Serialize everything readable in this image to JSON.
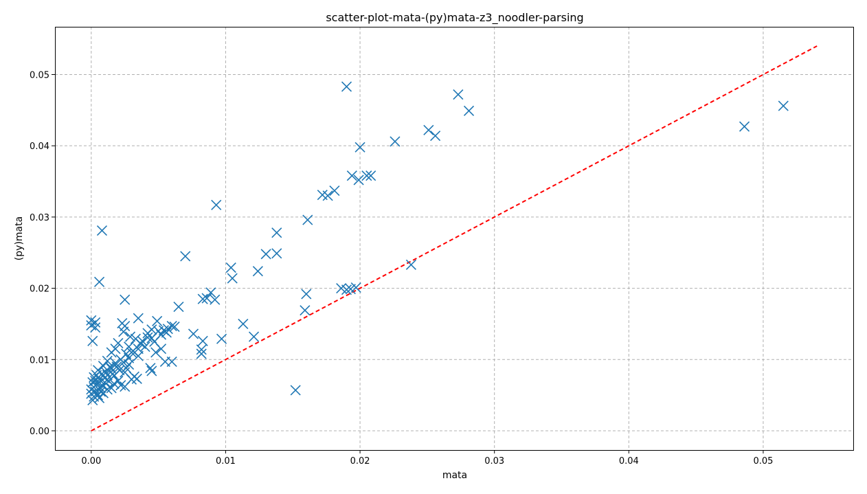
{
  "chart_data": {
    "type": "scatter",
    "title": "scatter-plot-mata-(py)mata-z3_noodler-parsing",
    "xlabel": "mata",
    "ylabel": "(py)mata",
    "xlim": [
      -0.0027,
      0.0567
    ],
    "ylim": [
      -0.0027,
      0.0567
    ],
    "xticks": [
      0.0,
      0.01,
      0.02,
      0.03,
      0.04,
      0.05
    ],
    "xtick_labels": [
      "0.00",
      "0.01",
      "0.02",
      "0.03",
      "0.04",
      "0.05"
    ],
    "yticks": [
      0.0,
      0.01,
      0.02,
      0.03,
      0.04,
      0.05
    ],
    "ytick_labels": [
      "0.00",
      "0.01",
      "0.02",
      "0.03",
      "0.04",
      "0.05"
    ],
    "grid": true,
    "marker": "x",
    "series": [
      {
        "color": "#1f77b4",
        "points": [
          [
            0.019,
            0.0483
          ],
          [
            0.0273,
            0.0472
          ],
          [
            0.0281,
            0.0449
          ],
          [
            0.0515,
            0.0456
          ],
          [
            0.0486,
            0.0427
          ],
          [
            0.0251,
            0.0422
          ],
          [
            0.0256,
            0.0414
          ],
          [
            0.0226,
            0.0406
          ],
          [
            0.02,
            0.0398
          ],
          [
            0.0194,
            0.0358
          ],
          [
            0.0199,
            0.0352
          ],
          [
            0.0205,
            0.0358
          ],
          [
            0.0208,
            0.0358
          ],
          [
            0.0181,
            0.0337
          ],
          [
            0.0176,
            0.033
          ],
          [
            0.0172,
            0.0331
          ],
          [
            0.0093,
            0.0317
          ],
          [
            0.0161,
            0.0296
          ],
          [
            0.0008,
            0.0281
          ],
          [
            0.0138,
            0.0278
          ],
          [
            0.013,
            0.0248
          ],
          [
            0.0138,
            0.0249
          ],
          [
            0.007,
            0.0245
          ],
          [
            0.0238,
            0.0233
          ],
          [
            0.0104,
            0.0229
          ],
          [
            0.0124,
            0.0224
          ],
          [
            0.0105,
            0.0214
          ],
          [
            0.0006,
            0.0209
          ],
          [
            0.0186,
            0.02
          ],
          [
            0.019,
            0.0198
          ],
          [
            0.0193,
            0.0199
          ],
          [
            0.0197,
            0.0201
          ],
          [
            0.0089,
            0.0194
          ],
          [
            0.016,
            0.0192
          ],
          [
            0.0083,
            0.0185
          ],
          [
            0.0086,
            0.0186
          ],
          [
            0.0092,
            0.0184
          ],
          [
            0.0025,
            0.0184
          ],
          [
            0.0065,
            0.0174
          ],
          [
            0.0159,
            0.0169
          ],
          [
            0.0035,
            0.0158
          ],
          [
            0.0,
            0.0155
          ],
          [
            0.0003,
            0.0152
          ],
          [
            0.0,
            0.0148
          ],
          [
            0.0003,
            0.0145
          ],
          [
            0.0023,
            0.0151
          ],
          [
            0.0025,
            0.0147
          ],
          [
            0.0049,
            0.0154
          ],
          [
            0.0113,
            0.015
          ],
          [
            0.006,
            0.0147
          ],
          [
            0.0062,
            0.0146
          ],
          [
            0.0057,
            0.0143
          ],
          [
            0.0054,
            0.0141
          ],
          [
            0.005,
            0.014
          ],
          [
            0.0045,
            0.0142
          ],
          [
            0.0042,
            0.0137
          ],
          [
            0.0076,
            0.0136
          ],
          [
            0.0024,
            0.0139
          ],
          [
            0.0121,
            0.0132
          ],
          [
            0.0097,
            0.0129
          ],
          [
            0.0083,
            0.0126
          ],
          [
            0.0001,
            0.0126
          ],
          [
            0.0033,
            0.0129
          ],
          [
            0.0038,
            0.0126
          ],
          [
            0.0045,
            0.013
          ],
          [
            0.0052,
            0.0135
          ],
          [
            0.002,
            0.0123
          ],
          [
            0.0028,
            0.0118
          ],
          [
            0.0018,
            0.0115
          ],
          [
            0.0035,
            0.0115
          ],
          [
            0.0031,
            0.0112
          ],
          [
            0.0052,
            0.0115
          ],
          [
            0.0082,
            0.0114
          ],
          [
            0.0048,
            0.011
          ],
          [
            0.0082,
            0.0108
          ],
          [
            0.0015,
            0.011
          ],
          [
            0.0026,
            0.0108
          ],
          [
            0.0035,
            0.0105
          ],
          [
            0.0022,
            0.01
          ],
          [
            0.0012,
            0.0098
          ],
          [
            0.0055,
            0.0097
          ],
          [
            0.006,
            0.0097
          ],
          [
            0.0018,
            0.0095
          ],
          [
            0.0028,
            0.0093
          ],
          [
            0.0009,
            0.0091
          ],
          [
            0.0044,
            0.0088
          ],
          [
            0.0045,
            0.0084
          ],
          [
            0.0015,
            0.0087
          ],
          [
            0.0005,
            0.0085
          ],
          [
            0.0025,
            0.0082
          ],
          [
            0.0008,
            0.008
          ],
          [
            0.0012,
            0.0078
          ],
          [
            0.0032,
            0.0076
          ],
          [
            0.0034,
            0.0073
          ],
          [
            0.003,
            0.0072
          ],
          [
            0.002,
            0.007
          ],
          [
            0.0002,
            0.0075
          ],
          [
            0.0006,
            0.0072
          ],
          [
            0.001,
            0.0068
          ],
          [
            0.0017,
            0.0066
          ],
          [
            0.0022,
            0.0064
          ],
          [
            0.0025,
            0.0062
          ],
          [
            0.0015,
            0.006
          ],
          [
            0.0004,
            0.0065
          ],
          [
            0.0007,
            0.006
          ],
          [
            0.0012,
            0.0058
          ],
          [
            0.0003,
            0.0055
          ],
          [
            0.0009,
            0.0053
          ],
          [
            0.0005,
            0.005
          ],
          [
            0.0002,
            0.0048
          ],
          [
            0.0006,
            0.0046
          ],
          [
            0.0001,
            0.0043
          ],
          [
            0.0152,
            0.0057
          ],
          [
            0.0,
            0.0058
          ],
          [
            0.0001,
            0.0068
          ],
          [
            0.0004,
            0.0078
          ],
          [
            0.0011,
            0.0082
          ],
          [
            0.0019,
            0.009
          ],
          [
            0.0028,
            0.0102
          ],
          [
            0.004,
            0.0118
          ],
          [
            0.0013,
            0.007
          ],
          [
            0.0016,
            0.008
          ],
          [
            0.0008,
            0.0064
          ],
          [
            0.0002,
            0.0061
          ],
          [
            0.0,
            0.0052
          ],
          [
            0.0007,
            0.0055
          ],
          [
            0.0003,
            0.007
          ],
          [
            0.0014,
            0.009
          ],
          [
            0.0024,
            0.0096
          ],
          [
            0.003,
            0.011
          ],
          [
            0.0021,
            0.0085
          ],
          [
            0.001,
            0.0074
          ],
          [
            0.0005,
            0.0067
          ],
          [
            0.0017,
            0.0077
          ],
          [
            0.0026,
            0.0088
          ],
          [
            0.0042,
            0.0131
          ],
          [
            0.0047,
            0.0125
          ],
          [
            0.0056,
            0.0138
          ],
          [
            0.0037,
            0.0122
          ],
          [
            0.0029,
            0.0132
          ]
        ]
      },
      {
        "color": "#ff0000",
        "style": "dashed",
        "x": [
          0.0,
          0.054
        ],
        "y": [
          0.0,
          0.054
        ]
      }
    ]
  }
}
